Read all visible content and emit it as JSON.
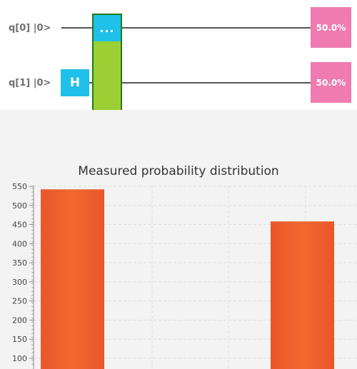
{
  "circuit": {
    "qubits": [
      {
        "label": "q[0] |0>",
        "probability": "50.0%"
      },
      {
        "label": "q[1] |0>",
        "probability": "50.0%"
      }
    ],
    "gates": {
      "h_label": "H",
      "controlled_label": "..."
    },
    "colors": {
      "h_gate": "#1fc0ea",
      "control_block": "#9ccf33",
      "probability_box": "#ef7bb0"
    }
  },
  "chart_data": {
    "type": "bar",
    "title": "Measured probability distribution",
    "values": [
      542,
      458
    ],
    "yticks": [
      100,
      150,
      200,
      250,
      300,
      350,
      400,
      450,
      500,
      550
    ],
    "ylim": [
      85,
      555
    ],
    "grid": true,
    "bar_color": "#ef602d"
  }
}
